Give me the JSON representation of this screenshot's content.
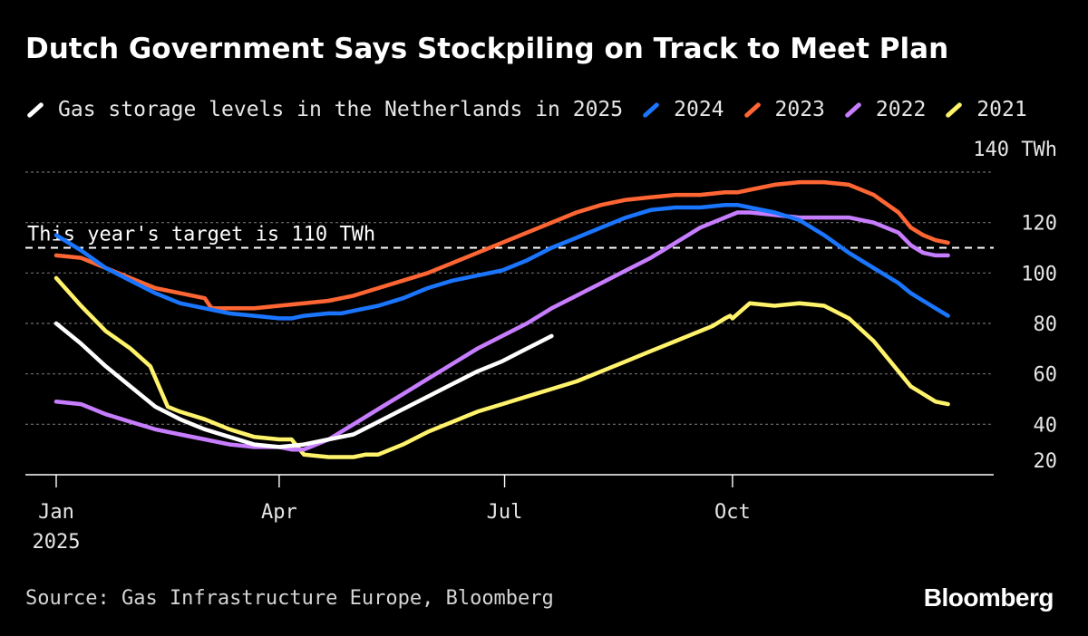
{
  "chart_data": {
    "type": "line",
    "title": "Dutch Government Says Stockpiling on Track to Meet Plan",
    "xlabel": "",
    "ylabel": "",
    "y_unit_label": "140 TWh",
    "ylim": [
      20,
      140
    ],
    "yticks": [
      {
        "value": 20,
        "label": "20"
      },
      {
        "value": 40,
        "label": "40"
      },
      {
        "value": 60,
        "label": "60"
      },
      {
        "value": 80,
        "label": "80"
      },
      {
        "value": 100,
        "label": "100"
      },
      {
        "value": 120,
        "label": "120"
      },
      {
        "value": 140,
        "label": "140 TWh"
      }
    ],
    "xlim": [
      0,
      366
    ],
    "xticks": [
      {
        "day": 0,
        "label": "Jan",
        "sublabel": "2025"
      },
      {
        "day": 90,
        "label": "Apr",
        "sublabel": ""
      },
      {
        "day": 181,
        "label": "Jul",
        "sublabel": ""
      },
      {
        "day": 273,
        "label": "Oct",
        "sublabel": ""
      }
    ],
    "target": {
      "value": 110,
      "label": "This year's target is 110 TWh"
    },
    "series": [
      {
        "name": "2021",
        "legend": "2021",
        "color": "#fff36b",
        "x": [
          0,
          10,
          20,
          30,
          38,
          45,
          50,
          60,
          70,
          80,
          90,
          95,
          100,
          110,
          120,
          125,
          130,
          140,
          150,
          160,
          170,
          180,
          190,
          200,
          210,
          220,
          230,
          240,
          250,
          255,
          260,
          265,
          270,
          272,
          273,
          280,
          290,
          300,
          310,
          320,
          330,
          340,
          345,
          350,
          355,
          360
        ],
        "y": [
          98,
          87,
          77,
          70,
          63,
          47,
          45,
          42,
          38,
          35,
          34,
          34,
          28,
          27,
          27,
          28,
          28,
          32,
          37,
          41,
          45,
          48,
          51,
          54,
          57,
          61,
          65,
          69,
          73,
          75,
          77,
          79,
          82,
          83,
          82,
          88,
          87,
          88,
          87,
          82,
          73,
          61,
          55,
          52,
          49,
          48
        ]
      },
      {
        "name": "2022",
        "legend": "2022",
        "color": "#c77dff",
        "x": [
          0,
          10,
          20,
          30,
          40,
          50,
          60,
          70,
          80,
          85,
          90,
          95,
          100,
          110,
          120,
          130,
          140,
          150,
          160,
          170,
          180,
          190,
          200,
          210,
          220,
          230,
          240,
          250,
          260,
          270,
          275,
          280,
          290,
          300,
          310,
          320,
          330,
          340,
          345,
          350,
          355,
          360
        ],
        "y": [
          49,
          48,
          44,
          41,
          38,
          36,
          34,
          32,
          31,
          31,
          31,
          30,
          30,
          34,
          40,
          46,
          52,
          58,
          64,
          70,
          75,
          80,
          86,
          91,
          96,
          101,
          106,
          112,
          118,
          122,
          124,
          124,
          123,
          122,
          122,
          122,
          120,
          116,
          111,
          108,
          107,
          107
        ]
      },
      {
        "name": "2023",
        "legend": "2023",
        "color": "#ff6633",
        "x": [
          0,
          10,
          20,
          30,
          40,
          50,
          60,
          62,
          63,
          70,
          80,
          90,
          100,
          110,
          120,
          130,
          140,
          150,
          160,
          170,
          180,
          190,
          200,
          210,
          220,
          230,
          240,
          250,
          260,
          270,
          275,
          280,
          290,
          300,
          310,
          320,
          330,
          340,
          345,
          350,
          355,
          360
        ],
        "y": [
          107,
          106,
          102,
          98,
          94,
          92,
          90,
          87,
          86,
          86,
          86,
          87,
          88,
          89,
          91,
          94,
          97,
          100,
          104,
          108,
          112,
          116,
          120,
          124,
          127,
          129,
          130,
          131,
          131,
          132,
          132,
          133,
          135,
          136,
          136,
          135,
          131,
          124,
          118,
          115,
          113,
          112
        ]
      },
      {
        "name": "2024",
        "legend": "2024",
        "color": "#1a75ff",
        "x": [
          0,
          10,
          20,
          30,
          40,
          50,
          60,
          70,
          80,
          90,
          95,
          100,
          110,
          115,
          120,
          130,
          140,
          150,
          160,
          170,
          180,
          190,
          200,
          210,
          220,
          230,
          240,
          250,
          260,
          270,
          275,
          280,
          290,
          300,
          310,
          320,
          330,
          340,
          345,
          350,
          355,
          360
        ],
        "y": [
          115,
          109,
          102,
          97,
          92,
          88,
          86,
          84,
          83,
          82,
          82,
          83,
          84,
          84,
          85,
          87,
          90,
          94,
          97,
          99,
          101,
          105,
          110,
          114,
          118,
          122,
          125,
          126,
          126,
          127,
          127,
          126,
          124,
          121,
          115,
          108,
          102,
          96,
          92,
          89,
          86,
          83
        ]
      },
      {
        "name": "Gas storage levels in the Netherlands in 2025",
        "legend": "Gas storage levels in the Netherlands in 2025",
        "color": "#ffffff",
        "x": [
          0,
          10,
          20,
          30,
          40,
          50,
          60,
          70,
          80,
          90,
          100,
          110,
          120,
          130,
          140,
          150,
          160,
          170,
          180,
          190,
          200
        ],
        "y": [
          80,
          72,
          63,
          55,
          47,
          42,
          38,
          35,
          32,
          31,
          32,
          34,
          36,
          41,
          46,
          51,
          56,
          61,
          65,
          70,
          75
        ]
      }
    ],
    "source": "Source: Gas Infrastructure Europe, Bloomberg",
    "brand": "Bloomberg"
  }
}
